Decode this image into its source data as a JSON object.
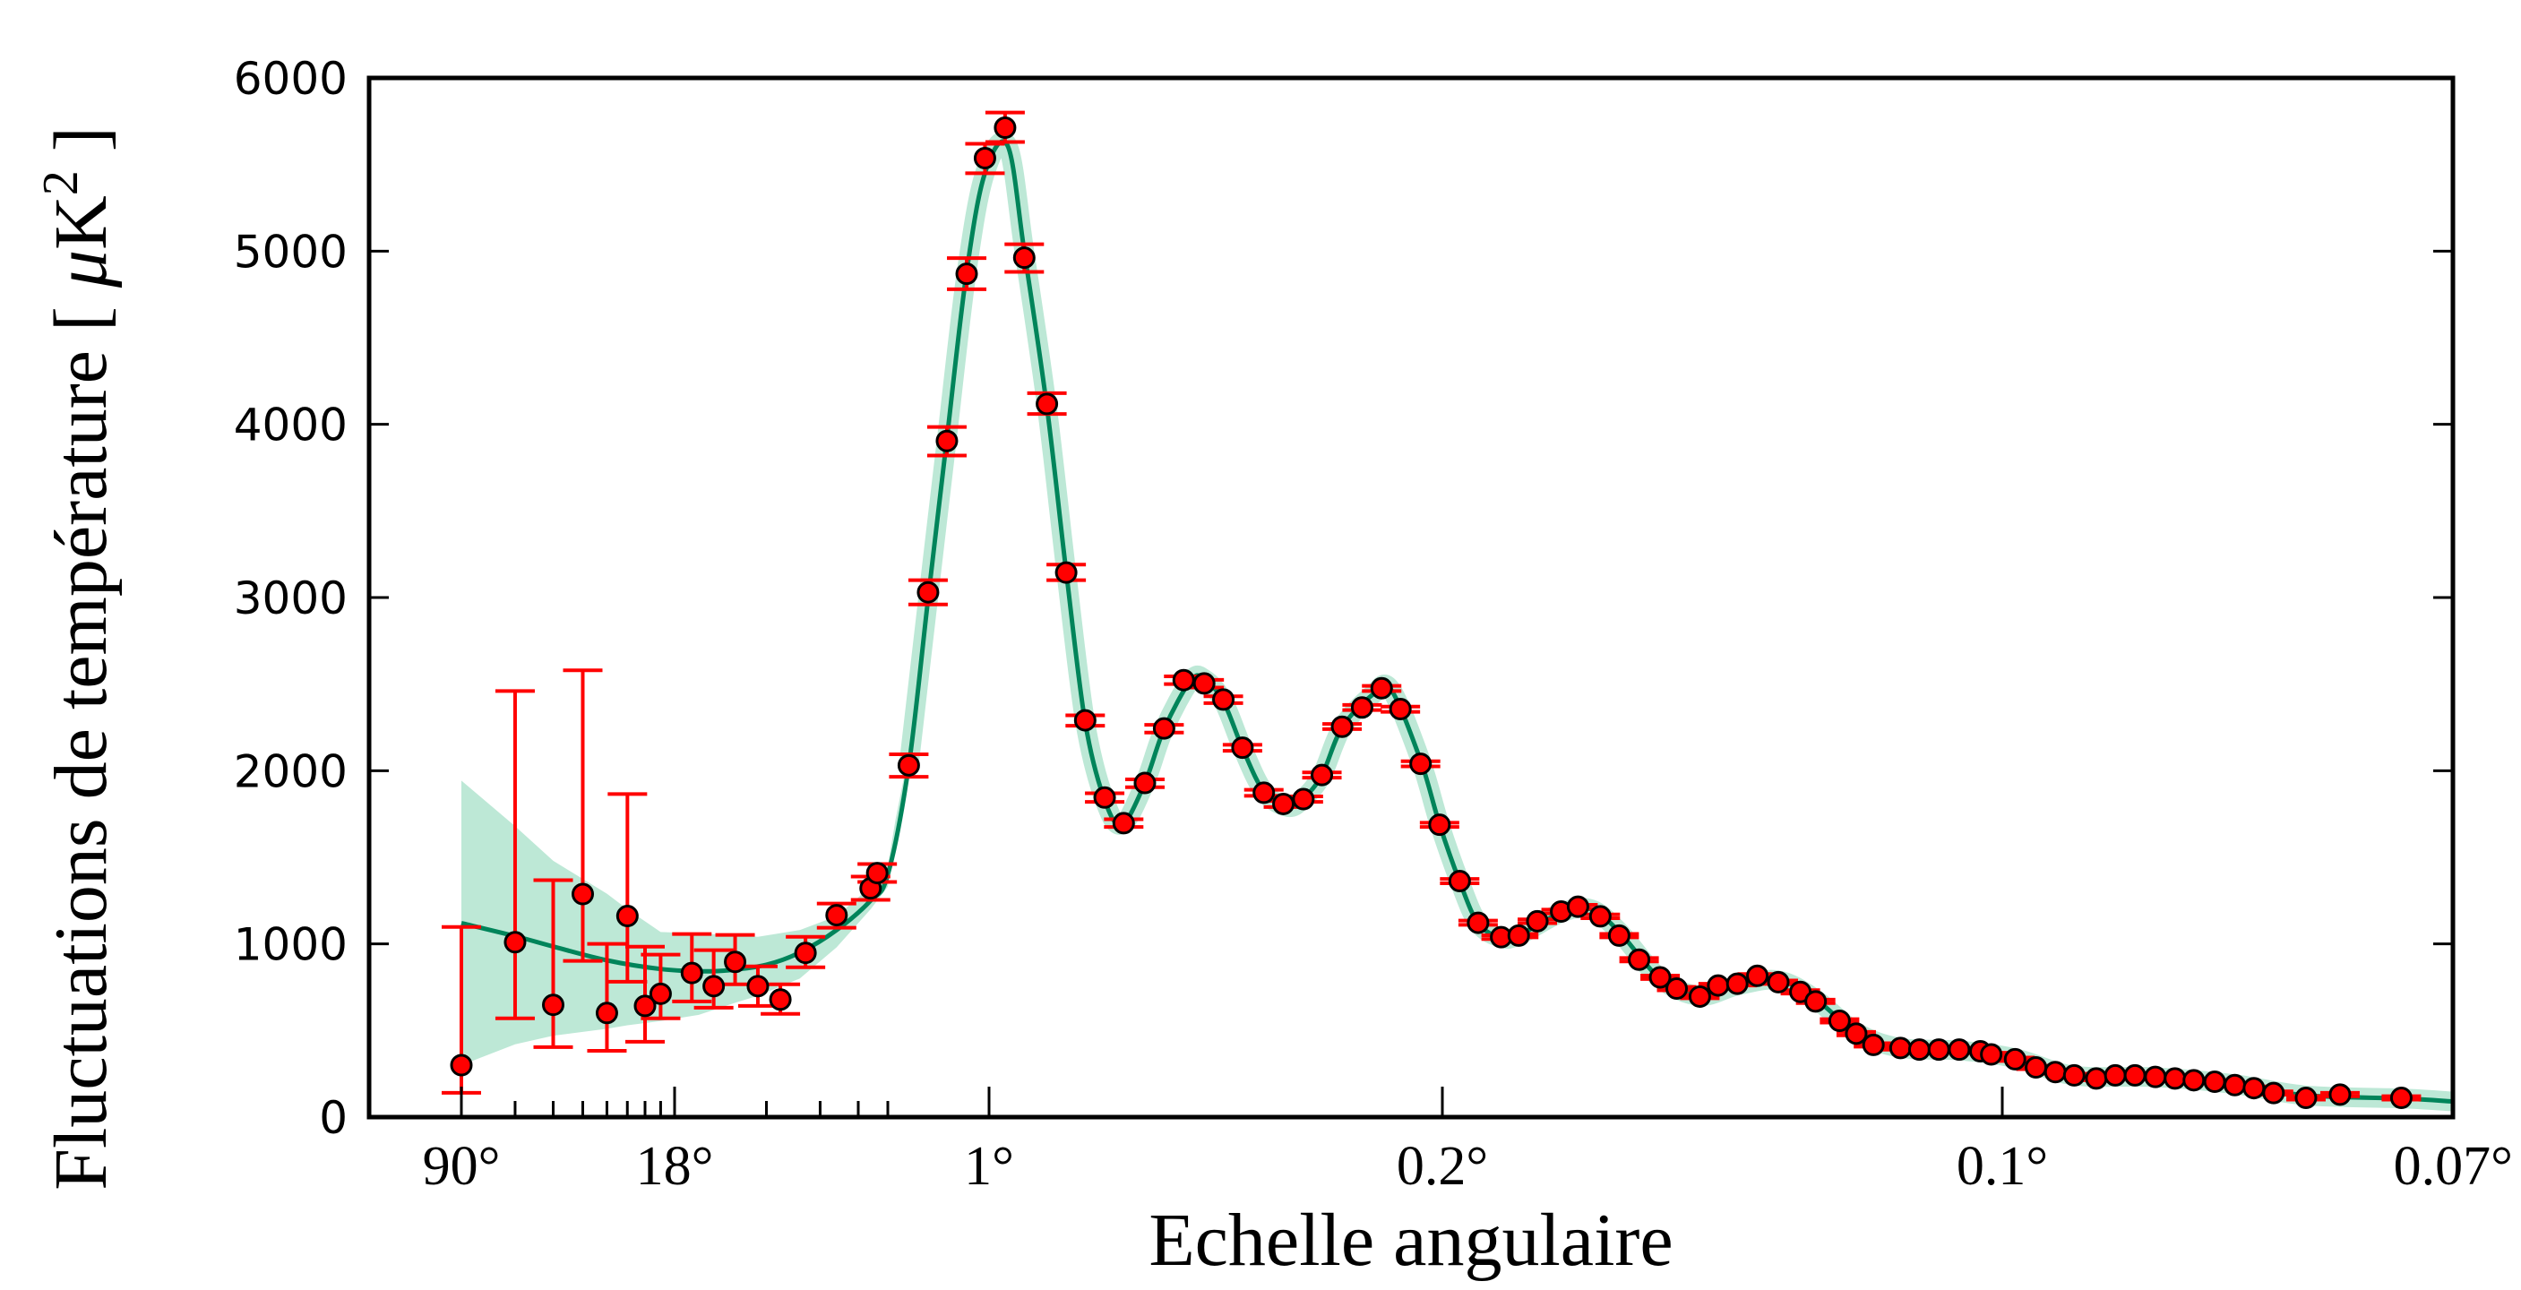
{
  "chart_data": {
    "type": "scatter",
    "title": "",
    "xlabel": "Echelle angulaire",
    "ylabel": "Fluctuations de température [ μK² ]",
    "ylabel_parts": {
      "text": "Fluctuations de température [ ",
      "mu": "μ",
      "unit": "K",
      "sup": "2",
      "close": " ]"
    },
    "x_axis": {
      "scale": "angular (log at large scales, linear in multipole at small scales)",
      "reversed": true,
      "range_deg": [
        150,
        0.07
      ]
    },
    "ylim": [
      0,
      6000
    ],
    "grid": false,
    "x_ticks": [
      {
        "label": "90°",
        "value": 90
      },
      {
        "label": "18°",
        "value": 18
      },
      {
        "label": "1°",
        "value": 1
      },
      {
        "label": "0.2°",
        "value": 0.2
      },
      {
        "label": "0.1°",
        "value": 0.1
      },
      {
        "label": "0.07°",
        "value": 0.07
      }
    ],
    "y_ticks": [
      {
        "label": "0",
        "value": 0
      },
      {
        "label": "1000",
        "value": 1000
      },
      {
        "label": "2000",
        "value": 2000
      },
      {
        "label": "3000",
        "value": 3000
      },
      {
        "label": "4000",
        "value": 4000
      },
      {
        "label": "5000",
        "value": 5000
      },
      {
        "label": "6000",
        "value": 6000
      }
    ],
    "colors": {
      "points": "#ff0000",
      "errorbars": "#ff0000",
      "model": "#00845a",
      "band": "#bde8d6"
    },
    "points_format": [
      "angle_deg",
      "value",
      "err_low",
      "err_high"
    ],
    "points": [
      [
        90,
        300,
        140,
        1098
      ],
      [
        60,
        1010,
        570,
        2460
      ],
      [
        45,
        648,
        404,
        1368
      ],
      [
        36,
        1288,
        902,
        2580
      ],
      [
        30,
        601,
        383,
        1000
      ],
      [
        25.7,
        1161,
        782,
        1865
      ],
      [
        22.5,
        642,
        435,
        984
      ],
      [
        20,
        712,
        570,
        938
      ],
      [
        15.8,
        832,
        668,
        1057
      ],
      [
        13.4,
        756,
        632,
        964
      ],
      [
        11.4,
        896,
        767,
        1052
      ],
      [
        9.6,
        756,
        642,
        870
      ],
      [
        8.1,
        679,
        596,
        767
      ],
      [
        6.7,
        948,
        865,
        1041
      ],
      [
        5.3,
        1166,
        1093,
        1233
      ],
      [
        4.1,
        1321,
        1254,
        1389
      ],
      [
        3.9,
        1409,
        1358,
        1461
      ],
      [
        2.34,
        2031,
        1965,
        2095
      ],
      [
        1.77,
        3030,
        2960,
        3100
      ],
      [
        1.43,
        3904,
        3820,
        3985
      ],
      [
        1.19,
        4869,
        4780,
        4960
      ],
      [
        1.03,
        5537,
        5450,
        5620
      ],
      [
        0.876,
        5713,
        5630,
        5800
      ],
      [
        0.763,
        4962,
        4880,
        5040
      ],
      [
        0.662,
        4118,
        4060,
        4180
      ],
      [
        0.595,
        3144,
        3100,
        3190
      ],
      [
        0.541,
        2291,
        2260,
        2320
      ],
      [
        0.495,
        1845,
        1820,
        1870
      ],
      [
        0.457,
        1697,
        1675,
        1720
      ],
      [
        0.421,
        1929,
        1905,
        1950
      ],
      [
        0.393,
        2244,
        2220,
        2265
      ],
      [
        0.368,
        2523,
        2500,
        2545
      ],
      [
        0.345,
        2504,
        2480,
        2525
      ],
      [
        0.326,
        2411,
        2390,
        2430
      ],
      [
        0.309,
        2133,
        2115,
        2150
      ],
      [
        0.292,
        1873,
        1855,
        1890
      ],
      [
        0.278,
        1808,
        1790,
        1825
      ],
      [
        0.265,
        1836,
        1820,
        1852
      ],
      [
        0.254,
        1975,
        1960,
        1990
      ],
      [
        0.243,
        2254,
        2240,
        2270
      ],
      [
        0.233,
        2365,
        2350,
        2380
      ],
      [
        0.224,
        2476,
        2460,
        2490
      ],
      [
        0.216,
        2356,
        2340,
        2370
      ],
      [
        0.208,
        2040,
        2025,
        2055
      ],
      [
        0.201,
        1688,
        1675,
        1700
      ],
      [
        0.194,
        1363,
        1350,
        1375
      ],
      [
        0.188,
        1122,
        1110,
        1135
      ],
      [
        0.181,
        1039,
        1028,
        1050
      ],
      [
        0.176,
        1048,
        1038,
        1058
      ],
      [
        0.171,
        1131,
        1120,
        1142
      ],
      [
        0.165,
        1187,
        1176,
        1198
      ],
      [
        0.161,
        1215,
        1204,
        1226
      ],
      [
        0.156,
        1159,
        1148,
        1170
      ],
      [
        0.152,
        1048,
        1038,
        1058
      ],
      [
        0.148,
        909,
        899,
        919
      ],
      [
        0.144,
        807,
        797,
        817
      ],
      [
        0.141,
        742,
        732,
        752
      ],
      [
        0.137,
        696,
        686,
        706
      ],
      [
        0.134,
        760,
        750,
        770
      ],
      [
        0.131,
        770,
        760,
        780
      ],
      [
        0.128,
        816,
        806,
        826
      ],
      [
        0.125,
        779,
        769,
        789
      ],
      [
        0.122,
        723,
        713,
        733
      ],
      [
        0.12,
        668,
        658,
        678
      ],
      [
        0.117,
        556,
        546,
        566
      ],
      [
        0.115,
        482,
        472,
        492
      ],
      [
        0.113,
        417,
        407,
        427
      ],
      [
        0.11,
        399,
        389,
        409
      ],
      [
        0.108,
        390,
        380,
        400
      ],
      [
        0.106,
        390,
        380,
        400
      ],
      [
        0.104,
        390,
        380,
        400
      ],
      [
        0.102,
        380,
        370,
        390
      ],
      [
        0.101,
        362,
        352,
        372
      ],
      [
        0.0988,
        334,
        324,
        344
      ],
      [
        0.0969,
        287,
        277,
        297
      ],
      [
        0.0952,
        260,
        250,
        270
      ],
      [
        0.0936,
        241,
        231,
        251
      ],
      [
        0.0918,
        223,
        213,
        233
      ],
      [
        0.0903,
        241,
        231,
        251
      ],
      [
        0.0888,
        241,
        231,
        251
      ],
      [
        0.0873,
        232,
        222,
        242
      ],
      [
        0.0859,
        223,
        213,
        233
      ],
      [
        0.0846,
        213,
        203,
        223
      ],
      [
        0.0832,
        204,
        194,
        214
      ],
      [
        0.0819,
        185,
        175,
        195
      ],
      [
        0.0807,
        167,
        157,
        177
      ],
      [
        0.0795,
        139,
        129,
        149
      ],
      [
        0.0776,
        111,
        101,
        121
      ],
      [
        0.0757,
        130,
        120,
        140
      ],
      [
        0.0725,
        111,
        101,
        121
      ]
    ],
    "model_format": [
      "angle_deg",
      "value"
    ],
    "model": [
      [
        90,
        1120
      ],
      [
        60,
        1045
      ],
      [
        45,
        985
      ],
      [
        30,
        905
      ],
      [
        20,
        855
      ],
      [
        15,
        842
      ],
      [
        12,
        848
      ],
      [
        9,
        880
      ],
      [
        7,
        950
      ],
      [
        5.3,
        1080
      ],
      [
        4.1,
        1250
      ],
      [
        3.6,
        1400
      ],
      [
        2.34,
        2030
      ],
      [
        1.77,
        2990
      ],
      [
        1.43,
        3920
      ],
      [
        1.19,
        4880
      ],
      [
        1.03,
        5450
      ],
      [
        0.86,
        5610
      ],
      [
        0.763,
        5000
      ],
      [
        0.662,
        4100
      ],
      [
        0.595,
        3150
      ],
      [
        0.541,
        2280
      ],
      [
        0.495,
        1830
      ],
      [
        0.46,
        1690
      ],
      [
        0.421,
        1930
      ],
      [
        0.393,
        2240
      ],
      [
        0.36,
        2520
      ],
      [
        0.345,
        2530
      ],
      [
        0.326,
        2400
      ],
      [
        0.309,
        2130
      ],
      [
        0.292,
        1880
      ],
      [
        0.275,
        1790
      ],
      [
        0.265,
        1840
      ],
      [
        0.254,
        1975
      ],
      [
        0.243,
        2250
      ],
      [
        0.228,
        2440
      ],
      [
        0.22,
        2470
      ],
      [
        0.208,
        2060
      ],
      [
        0.201,
        1690
      ],
      [
        0.194,
        1360
      ],
      [
        0.188,
        1120
      ],
      [
        0.181,
        1035
      ],
      [
        0.176,
        1050
      ],
      [
        0.165,
        1180
      ],
      [
        0.158,
        1200
      ],
      [
        0.152,
        1070
      ],
      [
        0.144,
        800
      ],
      [
        0.137,
        700
      ],
      [
        0.131,
        760
      ],
      [
        0.125,
        790
      ],
      [
        0.12,
        680
      ],
      [
        0.115,
        490
      ],
      [
        0.11,
        400
      ],
      [
        0.104,
        385
      ],
      [
        0.0988,
        340
      ],
      [
        0.0936,
        240
      ],
      [
        0.0873,
        230
      ],
      [
        0.0819,
        190
      ],
      [
        0.0776,
        125
      ],
      [
        0.0725,
        108
      ],
      [
        0.07,
        90
      ]
    ],
    "band_format": [
      "angle_deg",
      "low",
      "high"
    ],
    "band": [
      [
        90,
        300,
        1943
      ],
      [
        60,
        420,
        1680
      ],
      [
        45,
        470,
        1480
      ],
      [
        30,
        510,
        1290
      ],
      [
        25.7,
        530,
        1200
      ],
      [
        20,
        555,
        1069
      ],
      [
        15,
        590,
        1060
      ],
      [
        11.4,
        660,
        1050
      ],
      [
        9.6,
        700,
        1041
      ],
      [
        7,
        800,
        1080
      ],
      [
        5.3,
        980,
        1160
      ],
      [
        4.1,
        1200,
        1330
      ],
      [
        3.6,
        1330,
        1450
      ],
      [
        3.0,
        1600,
        1720
      ],
      [
        2.34,
        1950,
        2100
      ]
    ]
  }
}
